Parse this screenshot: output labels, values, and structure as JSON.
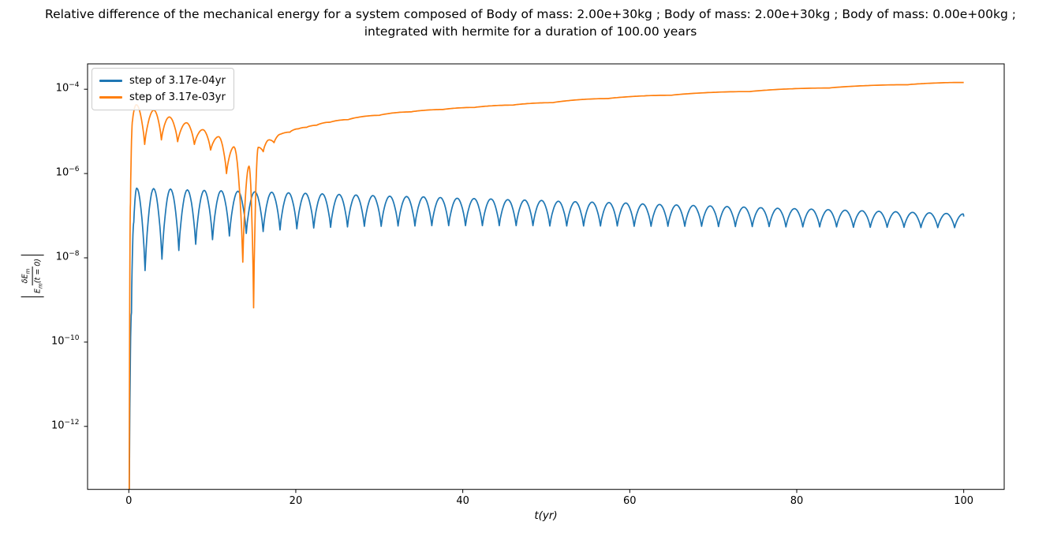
{
  "figure": {
    "title_line1": "Relative difference of the mechanical energy for a system composed of Body of mass: 2.00e+30kg ; Body of mass: 2.00e+30kg ; Body of mass: 0.00e+00kg ;",
    "title_line2": "integrated with hermite for a duration of 100.00 years"
  },
  "chart_data": {
    "type": "line",
    "title": "Relative difference of the mechanical energy for a system composed of Body of mass: 2.00e+30kg ; Body of mass: 2.00e+30kg ; Body of mass: 0.00e+00kg ; integrated with hermite for a duration of 100.00 years",
    "xlabel": "t(yr)",
    "ylabel": "|δEₘ / Eₘ(t = 0)|",
    "ylabel_parts": {
      "num_base": "δE",
      "num_sub": "m",
      "den_base": "E",
      "den_sub": "m",
      "den_rest": "(t = 0)"
    },
    "grid": false,
    "legend_position": "upper left",
    "axes": {
      "xlim": [
        -4.94,
        104.85
      ],
      "ylim": [
        3.2e-14,
        0.0004
      ],
      "yscale": "log",
      "xticks": [
        0,
        20,
        40,
        60,
        80,
        100
      ],
      "ytick_exponents": [
        -4,
        -6,
        -8,
        -10,
        -12
      ]
    },
    "series": [
      {
        "name": "step of 3.17e-04yr",
        "color": "#1f77b4",
        "points": [
          [
            0.06,
            3e-14
          ],
          [
            0.32,
            5e-10
          ],
          [
            0.6,
            7e-08
          ],
          [
            0.95,
            4.5e-07
          ],
          [
            1.95,
            5e-09
          ],
          [
            2.97,
            4.4e-07
          ],
          [
            3.97,
            9.3e-09
          ],
          [
            4.99,
            4.3e-07
          ],
          [
            5.99,
            1.5e-08
          ],
          [
            7.01,
            4.1e-07
          ],
          [
            8.01,
            2.1e-08
          ],
          [
            9.03,
            4e-07
          ],
          [
            10.03,
            2.7e-08
          ],
          [
            11.05,
            3.9e-07
          ],
          [
            12.05,
            3.3e-08
          ],
          [
            13.07,
            3.8e-07
          ],
          [
            14.07,
            3.8e-08
          ],
          [
            15.09,
            3.7e-07
          ],
          [
            16.09,
            4.2e-08
          ],
          [
            17.11,
            3.6e-07
          ],
          [
            18.11,
            4.6e-08
          ],
          [
            19.13,
            3.5e-07
          ],
          [
            20.13,
            4.9e-08
          ],
          [
            21.15,
            3.4e-07
          ],
          [
            22.15,
            5.1e-08
          ],
          [
            23.17,
            3.3e-07
          ],
          [
            24.17,
            5.3e-08
          ],
          [
            25.19,
            3.2e-07
          ],
          [
            26.19,
            5.4e-08
          ],
          [
            27.21,
            3.1e-07
          ],
          [
            28.21,
            5.6e-08
          ],
          [
            29.23,
            3e-07
          ],
          [
            30.23,
            5.6e-08
          ],
          [
            31.25,
            2.9e-07
          ],
          [
            32.25,
            5.7e-08
          ],
          [
            33.27,
            2.85e-07
          ],
          [
            34.27,
            5.7e-08
          ],
          [
            35.29,
            2.8e-07
          ],
          [
            36.29,
            5.8e-08
          ],
          [
            37.31,
            2.7e-07
          ],
          [
            38.31,
            5.8e-08
          ],
          [
            39.33,
            2.6e-07
          ],
          [
            40.33,
            5.8e-08
          ],
          [
            41.35,
            2.55e-07
          ],
          [
            42.35,
            5.8e-08
          ],
          [
            43.37,
            2.5e-07
          ],
          [
            44.37,
            5.8e-08
          ],
          [
            45.39,
            2.4e-07
          ],
          [
            46.39,
            5.8e-08
          ],
          [
            47.41,
            2.35e-07
          ],
          [
            48.41,
            5.8e-08
          ],
          [
            49.43,
            2.3e-07
          ],
          [
            50.43,
            5.7e-08
          ],
          [
            51.45,
            2.2e-07
          ],
          [
            52.45,
            5.7e-08
          ],
          [
            53.47,
            2.15e-07
          ],
          [
            54.47,
            5.7e-08
          ],
          [
            55.49,
            2.1e-07
          ],
          [
            56.49,
            5.7e-08
          ],
          [
            57.51,
            2.05e-07
          ],
          [
            58.51,
            5.7e-08
          ],
          [
            59.53,
            2e-07
          ],
          [
            60.53,
            5.6e-08
          ],
          [
            61.55,
            1.9e-07
          ],
          [
            62.55,
            5.6e-08
          ],
          [
            63.57,
            1.85e-07
          ],
          [
            64.57,
            5.6e-08
          ],
          [
            65.59,
            1.8e-07
          ],
          [
            66.59,
            5.6e-08
          ],
          [
            67.61,
            1.75e-07
          ],
          [
            68.61,
            5.6e-08
          ],
          [
            69.63,
            1.7e-07
          ],
          [
            70.63,
            5.5e-08
          ],
          [
            71.65,
            1.65e-07
          ],
          [
            72.65,
            5.5e-08
          ],
          [
            73.67,
            1.6e-07
          ],
          [
            74.67,
            5.5e-08
          ],
          [
            75.69,
            1.55e-07
          ],
          [
            76.69,
            5.5e-08
          ],
          [
            77.71,
            1.5e-07
          ],
          [
            78.71,
            5.4e-08
          ],
          [
            79.73,
            1.47e-07
          ],
          [
            80.73,
            5.4e-08
          ],
          [
            81.75,
            1.43e-07
          ],
          [
            82.75,
            5.4e-08
          ],
          [
            83.77,
            1.39e-07
          ],
          [
            84.77,
            5.4e-08
          ],
          [
            85.79,
            1.35e-07
          ],
          [
            86.79,
            5.3e-08
          ],
          [
            87.81,
            1.31e-07
          ],
          [
            88.81,
            5.3e-08
          ],
          [
            89.83,
            1.27e-07
          ],
          [
            90.83,
            5.3e-08
          ],
          [
            91.85,
            1.24e-07
          ],
          [
            92.85,
            5.3e-08
          ],
          [
            93.87,
            1.2e-07
          ],
          [
            94.87,
            5.2e-08
          ],
          [
            95.89,
            1.17e-07
          ],
          [
            96.89,
            5.2e-08
          ],
          [
            97.91,
            1.13e-07
          ],
          [
            98.91,
            5.2e-08
          ],
          [
            99.93,
            1.1e-07
          ],
          [
            100.0,
            9.5e-08
          ]
        ]
      },
      {
        "name": "step of 3.17e-03yr",
        "color": "#ff7f0e",
        "points": [
          [
            0.05,
            3e-14
          ],
          [
            0.2,
            2e-07
          ],
          [
            0.45,
            1.8e-05
          ],
          [
            0.9,
            4.3e-05
          ],
          [
            1.9,
            4.9e-06
          ],
          [
            3.0,
            3.2e-05
          ],
          [
            3.9,
            6.3e-06
          ],
          [
            4.85,
            2.2e-05
          ],
          [
            5.85,
            5.7e-06
          ],
          [
            6.9,
            1.6e-05
          ],
          [
            7.85,
            4.9e-06
          ],
          [
            8.85,
            1.1e-05
          ],
          [
            9.8,
            3.6e-06
          ],
          [
            10.75,
            7.5e-06
          ],
          [
            11.7,
            1e-06
          ],
          [
            12.6,
            4.3e-06
          ],
          [
            13.65,
            7.9e-09
          ],
          [
            14.4,
            1.5e-06
          ],
          [
            14.95,
            6.5e-10
          ],
          [
            15.5,
            4.2e-06
          ],
          [
            16.1,
            3.3e-06
          ],
          [
            16.8,
            6.3e-06
          ],
          [
            17.4,
            5.4e-06
          ],
          [
            18.2,
            8.6e-06
          ],
          [
            19.3,
            9.6e-06
          ],
          [
            20.3,
            1.15e-05
          ],
          [
            21.3,
            1.25e-05
          ],
          [
            22.5,
            1.4e-05
          ],
          [
            24.1,
            1.65e-05
          ],
          [
            26.3,
            1.9e-05
          ],
          [
            30.0,
            2.4e-05
          ],
          [
            33.8,
            2.9e-05
          ],
          [
            37.6,
            3.3e-05
          ],
          [
            41.4,
            3.7e-05
          ],
          [
            46.0,
            4.2e-05
          ],
          [
            50.8,
            4.8e-05
          ],
          [
            57.4,
            6e-05
          ],
          [
            65.0,
            7.2e-05
          ],
          [
            74.4,
            8.8e-05
          ],
          [
            83.9,
            0.000107
          ],
          [
            93.3,
            0.000128
          ],
          [
            100.0,
            0.000145
          ]
        ]
      }
    ]
  }
}
